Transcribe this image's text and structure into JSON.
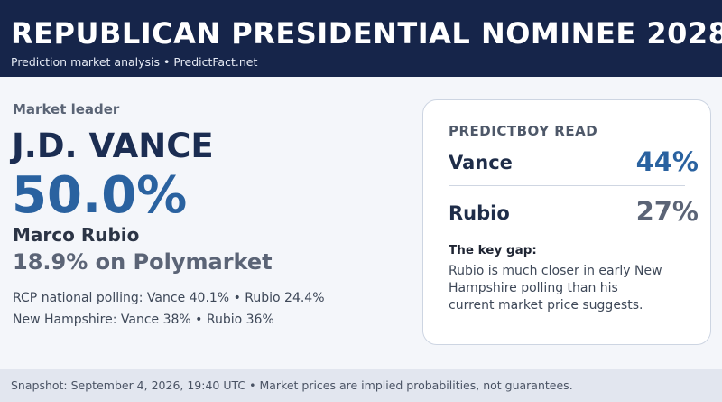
{
  "header": {
    "title": "REPUBLICAN PRESIDENTIAL NOMINEE 2028",
    "subtitle": "Prediction market analysis • PredictFact.net"
  },
  "leader": {
    "label": "Market leader",
    "name": "J.D. VANCE",
    "percent": "50.0%"
  },
  "runner_up": {
    "name": "Marco Rubio",
    "percent_text": "18.9% on Polymarket"
  },
  "polling": {
    "national": "RCP national polling: Vance 40.1% • Rubio 24.4%",
    "new_hampshire": "New Hampshire: Vance 38% • Rubio 36%"
  },
  "read_card": {
    "title": "PREDICTBOY READ",
    "rows": [
      {
        "name": "Vance",
        "value": "44%",
        "color": "#2a62a0"
      },
      {
        "name": "Rubio",
        "value": "27%",
        "color": "#5b6476"
      }
    ],
    "gap_title": "The key gap:",
    "gap_lines": [
      "Rubio is much closer in early New",
      "Hampshire polling than his",
      "current market price suggests."
    ]
  },
  "footer": {
    "text": "Snapshot: September 4, 2026, 19:40 UTC • Market prices are implied probabilities, not guarantees."
  },
  "colors": {
    "header_bg": "#16254a",
    "accent_blue": "#2a62a0",
    "muted_gray": "#5b6476"
  }
}
